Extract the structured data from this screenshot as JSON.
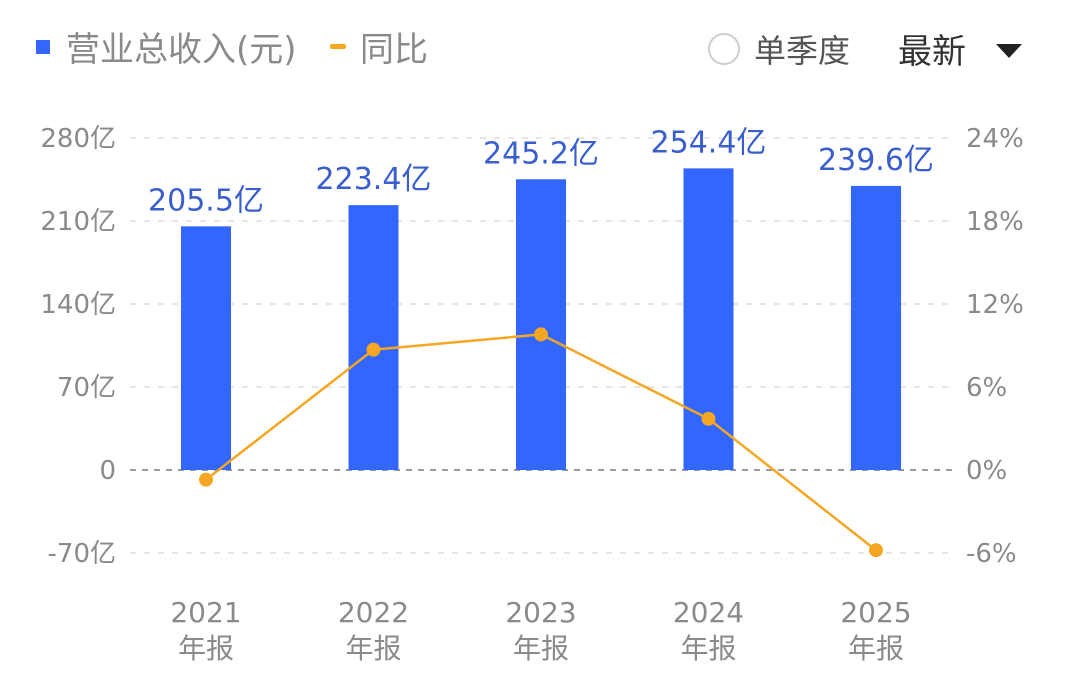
{
  "legend": {
    "revenue_label": "营业总收入(元)",
    "yoy_label": "同比",
    "quarter_label": "单季度",
    "latest_label": "最新"
  },
  "colors": {
    "bar": "#3366ff",
    "line": "#f5a623",
    "grid": "#dddddd",
    "label": "#3a5fcd"
  },
  "chart_data": {
    "type": "bar",
    "categories": [
      "2021",
      "2022",
      "2023",
      "2024",
      "2025"
    ],
    "category_sublabel": "年报",
    "series": [
      {
        "name": "营业总收入(元)",
        "type": "bar",
        "axis": "left",
        "values": [
          205.5,
          223.4,
          245.2,
          254.4,
          239.6
        ],
        "data_labels": [
          "205.5亿",
          "223.4亿",
          "245.2亿",
          "254.4亿",
          "239.6亿"
        ]
      },
      {
        "name": "同比",
        "type": "line",
        "axis": "right",
        "values": [
          -0.7,
          8.7,
          9.8,
          3.7,
          -5.8
        ]
      }
    ],
    "y_left": {
      "ticks": [
        "280亿",
        "210亿",
        "140亿",
        "70亿",
        "0",
        "-70亿"
      ],
      "values": [
        280,
        210,
        140,
        70,
        0,
        -70
      ],
      "lim": [
        -70,
        280
      ]
    },
    "y_right": {
      "ticks": [
        "24%",
        "18%",
        "12%",
        "6%",
        "0%",
        "-6%"
      ],
      "values": [
        24,
        18,
        12,
        6,
        0,
        -6
      ],
      "lim": [
        -6,
        24
      ]
    },
    "grid": true
  }
}
